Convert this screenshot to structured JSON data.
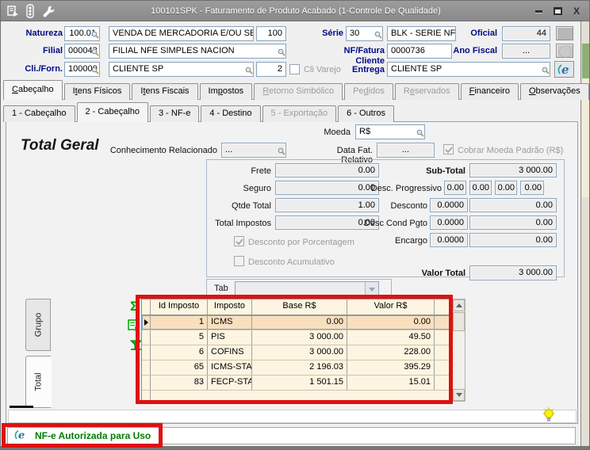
{
  "window": {
    "title": "100101SPK - Faturamento de Produto Acabado (1-Controle De Qualidade)"
  },
  "form": {
    "natureza_label": "Natureza",
    "natureza_code": "100.01",
    "natureza_desc": "VENDA DE MERCADORIA E/OU SERVI",
    "natureza_tipo": "100",
    "filial_label": "Filial",
    "filial_code": "000043",
    "filial_desc": "FILIAL NFE SIMPLES NACION",
    "cliforn_label": "Cli./Forn.",
    "cliforn_code": "100000",
    "cliforn_desc": "CLIENTE SP",
    "cliforn_loja": "2",
    "cli_varejo_label": "Cli Varejo",
    "serie_label": "Série",
    "serie_code": "30",
    "serie_desc": "BLK - SERIE NFE",
    "oficial_label": "Oficial",
    "oficial_value": "44",
    "nf_label": "NF/Fatura",
    "nf_value": "0000736",
    "ano_label": "Ano Fiscal",
    "ano_value": "...",
    "entrega_label1": "Cliente",
    "entrega_label2": "Entrega",
    "entrega_value": "CLIENTE SP"
  },
  "tabs": {
    "main": [
      {
        "label": "Cabeçalho",
        "u": 0,
        "state": "active"
      },
      {
        "label": "Itens Físicos",
        "u": 1,
        "state": "normal"
      },
      {
        "label": "Itens Fiscais",
        "u": 1,
        "state": "normal"
      },
      {
        "label": "Impostos",
        "u": 2,
        "state": "normal"
      },
      {
        "label": "Retorno Simbólico",
        "u": 0,
        "state": "disabled"
      },
      {
        "label": "Pedidos",
        "u": 2,
        "state": "disabled"
      },
      {
        "label": "Reservados",
        "u": 1,
        "state": "disabled"
      },
      {
        "label": "Financeiro",
        "u": 0,
        "state": "normal"
      },
      {
        "label": "Observações",
        "u": 0,
        "state": "normal"
      }
    ],
    "sub": [
      {
        "label": "1 - Cabeçalho",
        "state": "normal"
      },
      {
        "label": "2 - Cabeçalho",
        "state": "active"
      },
      {
        "label": "3 - NF-e",
        "state": "normal"
      },
      {
        "label": "4 - Destino",
        "state": "normal"
      },
      {
        "label": "5 - Exportação",
        "state": "disabled"
      },
      {
        "label": "6 - Outros",
        "state": "normal"
      }
    ]
  },
  "content": {
    "moeda_label": "Moeda",
    "moeda_value": "R$",
    "section_title": "Total Geral",
    "conhecimento_label": "Conhecimento Relacionado",
    "conhecimento_value": "...",
    "data_fat_label": "Data Fat. Relativo",
    "data_fat_value": "...",
    "cobrar_moeda_label": "Cobrar Moeda Padrão (R$)",
    "frete_label": "Frete",
    "frete": "0.00",
    "seguro_label": "Seguro",
    "seguro": "0.00",
    "qtde_label": "Qtde Total",
    "qtde": "1.00",
    "impostos_label": "Total Impostos",
    "impostos": "0.00",
    "desc_pct_label": "Desconto por Porcentagem",
    "desc_acum_label": "Desconto Acumulativo",
    "subtotal_label": "Sub-Total",
    "subtotal": "3 000.00",
    "desc_prog_label": "Desc. Progressivo",
    "desc_prog": [
      "0.00",
      "0.00",
      "0.00",
      "0.00"
    ],
    "desconto_label": "Desconto",
    "desconto_pct": "0.0000",
    "desconto_val": "0.00",
    "desc_cond_label": "Desc Cond Pgto",
    "desc_cond_pct": "0.0000",
    "desc_cond_val": "0.00",
    "encargo_label": "Encargo",
    "encargo_pct": "0.0000",
    "encargo_val": "0.00",
    "valor_total_label": "Valor Total",
    "valor_total": "3 000.00",
    "tab_label": "Tab",
    "tab_value": ""
  },
  "grid": {
    "side_tabs": [
      "Grupo",
      "Total"
    ],
    "columns": [
      "Id Imposto",
      "Imposto",
      "Base R$",
      "Valor R$"
    ],
    "rows": [
      {
        "id": "1",
        "tax": "ICMS",
        "base": "0.00",
        "value": "0.00"
      },
      {
        "id": "5",
        "tax": "PIS",
        "base": "3 000.00",
        "value": "49.50"
      },
      {
        "id": "6",
        "tax": "COFINS",
        "base": "3 000.00",
        "value": "228.00"
      },
      {
        "id": "65",
        "tax": "ICMS-STA",
        "base": "2 196.03",
        "value": "395.29"
      },
      {
        "id": "83",
        "tax": "FECP-STA",
        "base": "1 501.15",
        "value": "15.01"
      }
    ]
  },
  "status": {
    "message": "NF-e Autorizada para Uso"
  },
  "colors": {
    "annotation_red": "#dd1111",
    "status_green": "#007d00",
    "label_navy": "#000a86",
    "grid_cream": "#fdf5e1",
    "grid_selected_row": "#f9dfbc"
  }
}
